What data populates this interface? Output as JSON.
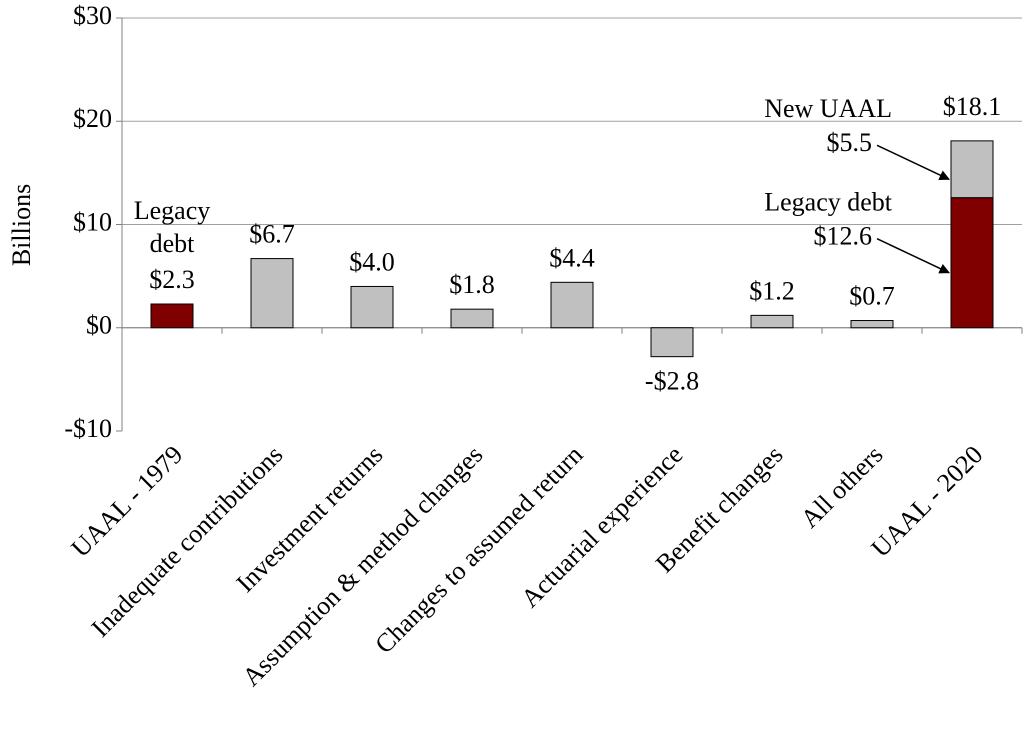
{
  "chart_data": {
    "type": "bar",
    "y_label": "Billions",
    "categories": [
      "UAAL - 1979",
      "Inadequate contributions",
      "Investment returns",
      "Assumption & method changes",
      "Changes to assumed return",
      "Actuarial experience",
      "Benefit changes",
      "All others",
      "UAAL - 2020"
    ],
    "series": [
      {
        "name": "Legacy debt",
        "color": "#800000",
        "values": [
          2.3,
          null,
          null,
          null,
          null,
          null,
          null,
          null,
          12.6
        ],
        "value_labels": [
          "$2.3",
          null,
          null,
          null,
          null,
          null,
          null,
          null,
          "$12.6"
        ]
      },
      {
        "name": "New UAAL",
        "color": "#c0c0c0",
        "values": [
          null,
          6.7,
          4.0,
          1.8,
          4.4,
          -2.8,
          1.2,
          0.7,
          5.5
        ],
        "value_labels": [
          null,
          "$6.7",
          "$4.0",
          "$1.8",
          "$4.4",
          "-$2.8",
          "$1.2",
          "$0.7",
          "$5.5"
        ]
      }
    ],
    "total": {
      "category": 8,
      "value": 18.1,
      "label": "$18.1"
    },
    "ylim": [
      -10,
      30
    ],
    "yticks": [
      {
        "value": -10,
        "label": "-$10"
      },
      {
        "value": 0,
        "label": "$0"
      },
      {
        "value": 10,
        "label": "$10"
      },
      {
        "value": 20,
        "label": "$20"
      },
      {
        "value": 30,
        "label": "$30"
      }
    ],
    "grid": true
  }
}
